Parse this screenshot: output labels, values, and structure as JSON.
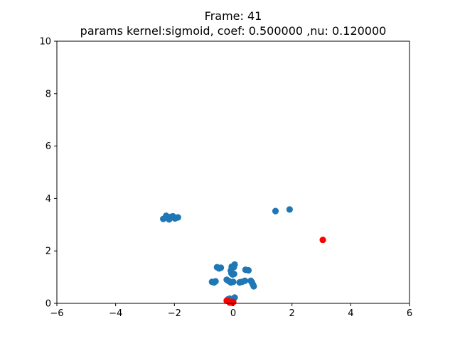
{
  "chart_data": {
    "type": "scatter",
    "title": "Frame: 41",
    "subtitle": "params kernel:sigmoid, coef: 0.500000 ,nu: 0.120000",
    "xlabel": "",
    "ylabel": "",
    "xlim": [
      -6,
      6
    ],
    "ylim": [
      0,
      10
    ],
    "xticks": [
      -6,
      -4,
      -2,
      0,
      2,
      4,
      6
    ],
    "yticks": [
      0,
      2,
      4,
      6,
      8,
      10
    ],
    "grid": false,
    "series": [
      {
        "color": "#1f77b4",
        "points": [
          [
            -2.38,
            3.22
          ],
          [
            -2.28,
            3.34
          ],
          [
            -2.18,
            3.2
          ],
          [
            -2.12,
            3.3
          ],
          [
            -2.05,
            3.32
          ],
          [
            -1.98,
            3.24
          ],
          [
            -1.88,
            3.28
          ],
          [
            1.44,
            3.52
          ],
          [
            1.92,
            3.58
          ],
          [
            -0.55,
            1.38
          ],
          [
            -0.48,
            1.33
          ],
          [
            -0.42,
            1.36
          ],
          [
            -0.05,
            1.4
          ],
          [
            0.05,
            1.48
          ],
          [
            0.02,
            1.38
          ],
          [
            -0.08,
            1.25
          ],
          [
            -0.06,
            1.15
          ],
          [
            -0.02,
            1.1
          ],
          [
            0.03,
            1.12
          ],
          [
            0.42,
            1.28
          ],
          [
            0.52,
            1.26
          ],
          [
            -0.72,
            0.82
          ],
          [
            -0.65,
            0.8
          ],
          [
            -0.6,
            0.84
          ],
          [
            -0.22,
            0.9
          ],
          [
            -0.15,
            0.85
          ],
          [
            -0.08,
            0.8
          ],
          [
            0.0,
            0.82
          ],
          [
            0.22,
            0.8
          ],
          [
            0.3,
            0.82
          ],
          [
            0.4,
            0.86
          ],
          [
            0.6,
            0.86
          ],
          [
            0.64,
            0.8
          ],
          [
            0.67,
            0.72
          ],
          [
            0.7,
            0.65
          ],
          [
            -0.18,
            0.15
          ],
          [
            -0.12,
            0.18
          ],
          [
            0.05,
            0.22
          ]
        ]
      },
      {
        "color": "#ff0000",
        "points": [
          [
            -0.22,
            0.1
          ],
          [
            -0.15,
            0.08
          ],
          [
            -0.08,
            0.05
          ],
          [
            0.0,
            0.05
          ],
          [
            -0.12,
            0.03
          ],
          [
            -0.03,
            0.02
          ],
          [
            3.05,
            2.42
          ]
        ]
      }
    ]
  }
}
